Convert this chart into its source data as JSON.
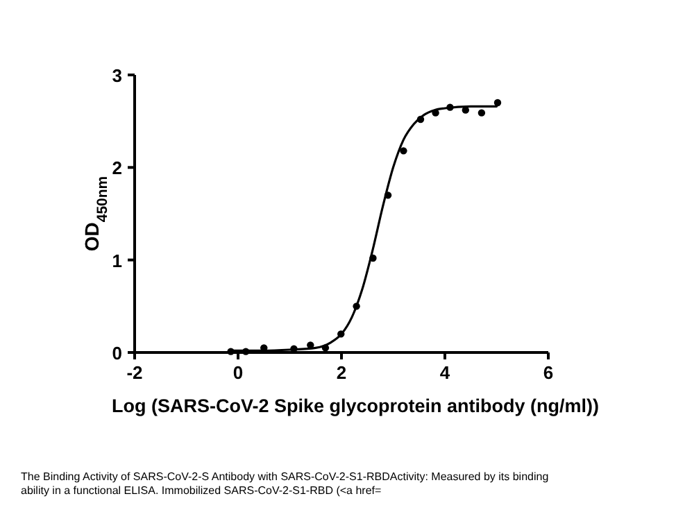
{
  "chart_data": {
    "type": "scatter",
    "xlabel": "Log (SARS-CoV-2 Spike glycoprotein antibody (ng/ml))",
    "ylabel": "OD$_{450nm}$",
    "xlim": [
      -2,
      6
    ],
    "xticks": [
      -2,
      0,
      2,
      4,
      6
    ],
    "ylim": [
      0,
      3
    ],
    "yticks": [
      0,
      1,
      2,
      3
    ],
    "grid": false,
    "marker": "circle",
    "series": [
      {
        "color": "#000000",
        "x": [
          -0.14,
          0.15,
          0.5,
          1.08,
          1.4,
          1.69,
          1.99,
          2.29,
          2.61,
          2.9,
          3.2,
          3.53,
          3.82,
          4.1,
          4.4,
          4.71,
          5.02
        ],
        "values": [
          0.01,
          0.01,
          0.05,
          0.04,
          0.08,
          0.05,
          0.2,
          0.5,
          1.02,
          1.7,
          2.18,
          2.52,
          2.59,
          2.65,
          2.62,
          2.59,
          2.7
        ]
      },
      {
        "type": "line",
        "color": "#000000",
        "line_style": "solid",
        "marker": "none",
        "x": [
          -0.15,
          0.5,
          1.0,
          1.5,
          1.8,
          2.0,
          2.2,
          2.4,
          2.6,
          2.8,
          3.0,
          3.2,
          3.4,
          3.6,
          3.8,
          4.0,
          4.5,
          5.0
        ],
        "values": [
          0.02,
          0.02,
          0.03,
          0.05,
          0.11,
          0.2,
          0.38,
          0.68,
          1.1,
          1.58,
          2.0,
          2.3,
          2.47,
          2.57,
          2.62,
          2.64,
          2.66,
          2.66
        ]
      }
    ],
    "annotations": [
      "The Binding Activity of SARS-CoV-2-S Antibody with SARS-CoV-2-S1-RBDActivity: Measured by its binding ability in a functional ELISA. Immobilized SARS-CoV-2-S1-RBD (<a href="
    ]
  }
}
